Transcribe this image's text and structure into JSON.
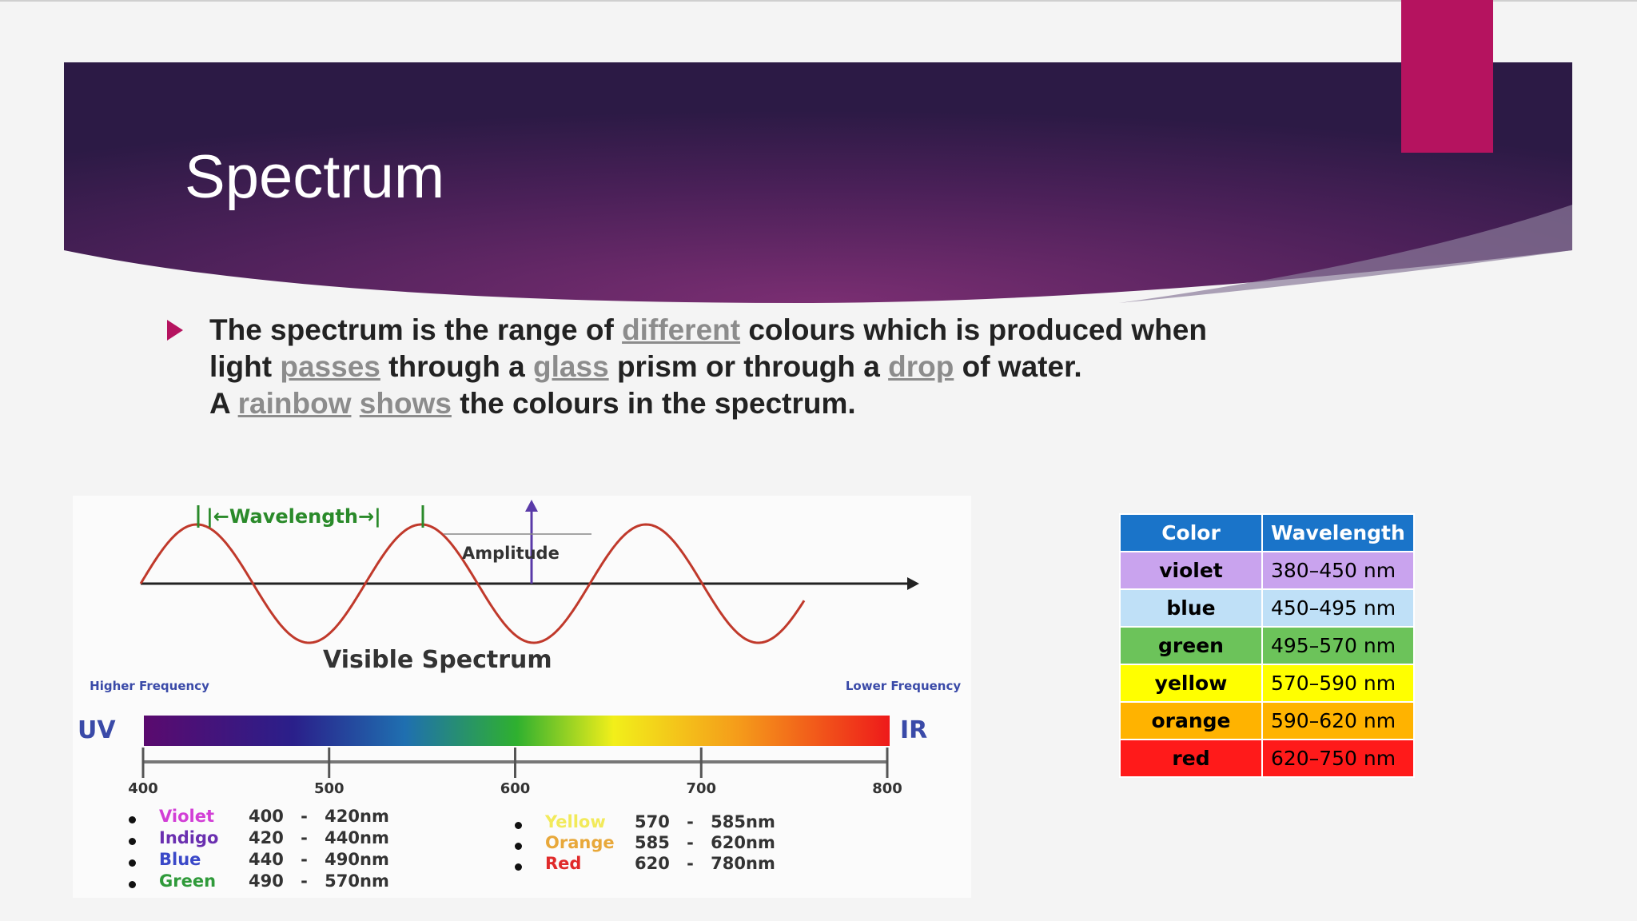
{
  "header": {
    "title": "Spectrum"
  },
  "bullet": {
    "lines": [
      [
        {
          "text": "The spectrum"
        },
        {
          "text": "is"
        },
        {
          "text": "the range of"
        },
        {
          "text": "different",
          "underline": true
        },
        {
          "text": "colours which is produced when"
        }
      ],
      [
        {
          "text": "light"
        },
        {
          "text": "passes",
          "underline": true
        },
        {
          "text": "through a"
        },
        {
          "text": "glass",
          "underline": true
        },
        {
          "text": "prism or through a"
        },
        {
          "text": "drop",
          "underline": true
        },
        {
          "text": "of water."
        }
      ],
      [
        {
          "text": "A"
        },
        {
          "text": "rainbow",
          "underline": true
        },
        {
          "text": "shows",
          "underline": true
        },
        {
          "text": "the colours in the spectrum."
        }
      ]
    ]
  },
  "diagram": {
    "wavelength_label": "|←Wavelength→|",
    "amplitude_label": "Amplitude",
    "title": "Visible Spectrum",
    "higher_label": "Higher Frequency",
    "lower_label": "Lower Frequency",
    "uv_label": "UV",
    "ir_label": "IR",
    "xlim": [
      400,
      800
    ],
    "xticks": [
      400,
      500,
      600,
      700,
      800
    ],
    "list_left": [
      {
        "name": "Violet",
        "range": "400 - 420nm",
        "color": "#d23fd6"
      },
      {
        "name": "Indigo",
        "range": "420 - 440nm",
        "color": "#6a2fb0"
      },
      {
        "name": "Blue",
        "range": "440 - 490nm",
        "color": "#3a48c8"
      },
      {
        "name": "Green",
        "range": "490 - 570nm",
        "color": "#2f9a3a"
      }
    ],
    "list_right": [
      {
        "name": "Yellow",
        "range": "570 - 585nm",
        "color": "#f2ea5a"
      },
      {
        "name": "Orange",
        "range": "585 - 620nm",
        "color": "#e8a83a"
      },
      {
        "name": "Red",
        "range": "620 - 780nm",
        "color": "#e02a2a"
      }
    ]
  },
  "table": {
    "header": [
      "Color",
      "Wavelength"
    ],
    "header_fill": "#1a74c9",
    "rows": [
      {
        "color": "violet",
        "wavelength": "380–450 nm",
        "fill": "#c9a3ee"
      },
      {
        "color": "blue",
        "wavelength": "450–495 nm",
        "fill": "#bfe0f7"
      },
      {
        "color": "green",
        "wavelength": "495–570 nm",
        "fill": "#6cc35a"
      },
      {
        "color": "yellow",
        "wavelength": "570–590 nm",
        "fill": "#ffff00"
      },
      {
        "color": "orange",
        "wavelength": "590–620 nm",
        "fill": "#ffb300"
      },
      {
        "color": "red",
        "wavelength": "620–750 nm",
        "fill": "#ff1a1a"
      }
    ]
  }
}
